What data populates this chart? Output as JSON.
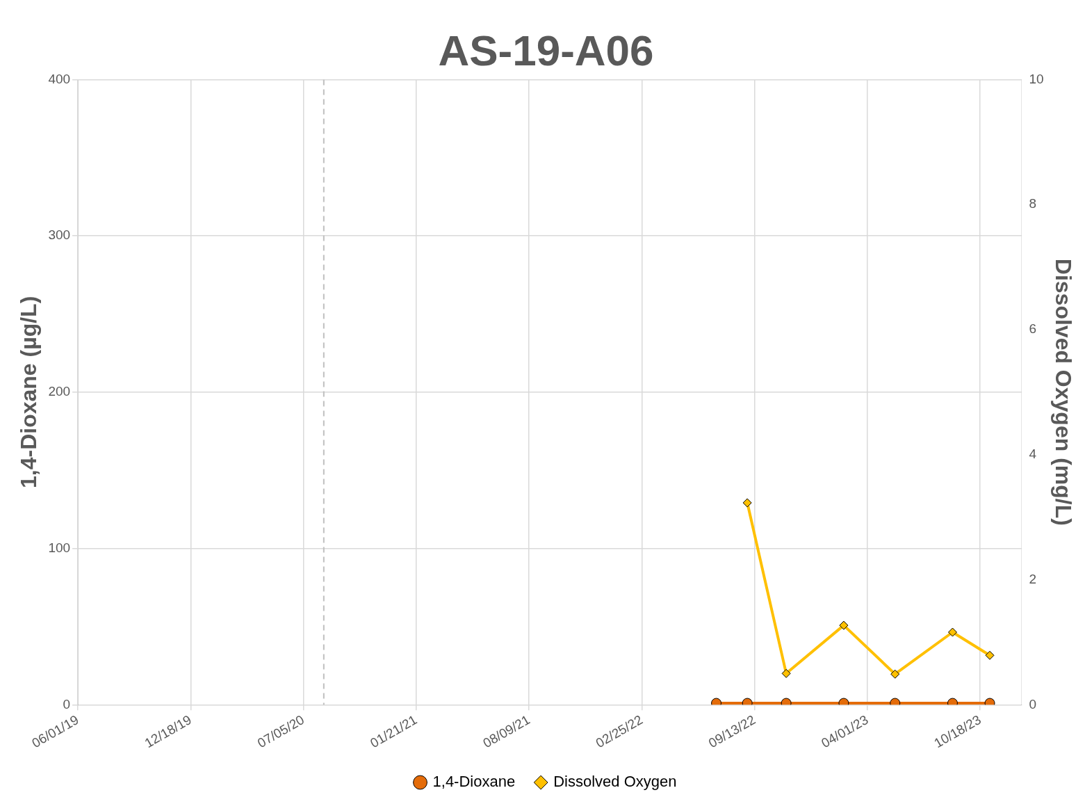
{
  "chart_data": {
    "type": "line",
    "title": "AS-19-A06",
    "ylabel": "1,4-Dioxane (µg/L)",
    "y2label": "Dissolved Oxygen (mg/L)",
    "xlim": [
      "2019-06-01",
      "2023-12-30"
    ],
    "xticks": [
      {
        "value": "2019-06-01",
        "label": "06/01/19"
      },
      {
        "value": "2019-12-18",
        "label": "12/18/19"
      },
      {
        "value": "2020-07-05",
        "label": "07/05/20"
      },
      {
        "value": "2021-01-21",
        "label": "01/21/21"
      },
      {
        "value": "2021-08-09",
        "label": "08/09/21"
      },
      {
        "value": "2022-02-25",
        "label": "02/25/22"
      },
      {
        "value": "2022-09-13",
        "label": "09/13/22"
      },
      {
        "value": "2023-04-01",
        "label": "04/01/23"
      },
      {
        "value": "2023-10-18",
        "label": "10/18/23"
      }
    ],
    "ylim": [
      0,
      400
    ],
    "yticks": [
      0,
      100,
      200,
      300,
      400
    ],
    "y2lim": [
      0,
      10
    ],
    "y2ticks": [
      0,
      2,
      4,
      6,
      8,
      10
    ],
    "grid": true,
    "legend": "bottom",
    "ref_lines": [
      {
        "axis": "x",
        "value": "2020-08-10",
        "color": "#bfbfbf",
        "line_style": "dashed"
      }
    ],
    "series": [
      {
        "name": "1,4-Dioxane",
        "color": "#e46c0a",
        "marker": "circle",
        "x": [
          "2022-07-07",
          "2022-08-31",
          "2022-11-08",
          "2023-02-18",
          "2023-05-20",
          "2023-08-30",
          "2023-11-04"
        ],
        "values": [
          1,
          1,
          1,
          1,
          1,
          1,
          1
        ]
      },
      {
        "name": "Dissolved Oxygen",
        "color": "#ffc000",
        "marker": "diamond",
        "axis": "y2",
        "x": [
          "2022-08-31",
          "2022-11-08",
          "2023-02-18",
          "2023-05-20",
          "2023-08-30",
          "2023-11-04"
        ],
        "values": [
          3.23,
          0.5,
          1.27,
          0.49,
          1.16,
          0.79
        ]
      }
    ]
  }
}
